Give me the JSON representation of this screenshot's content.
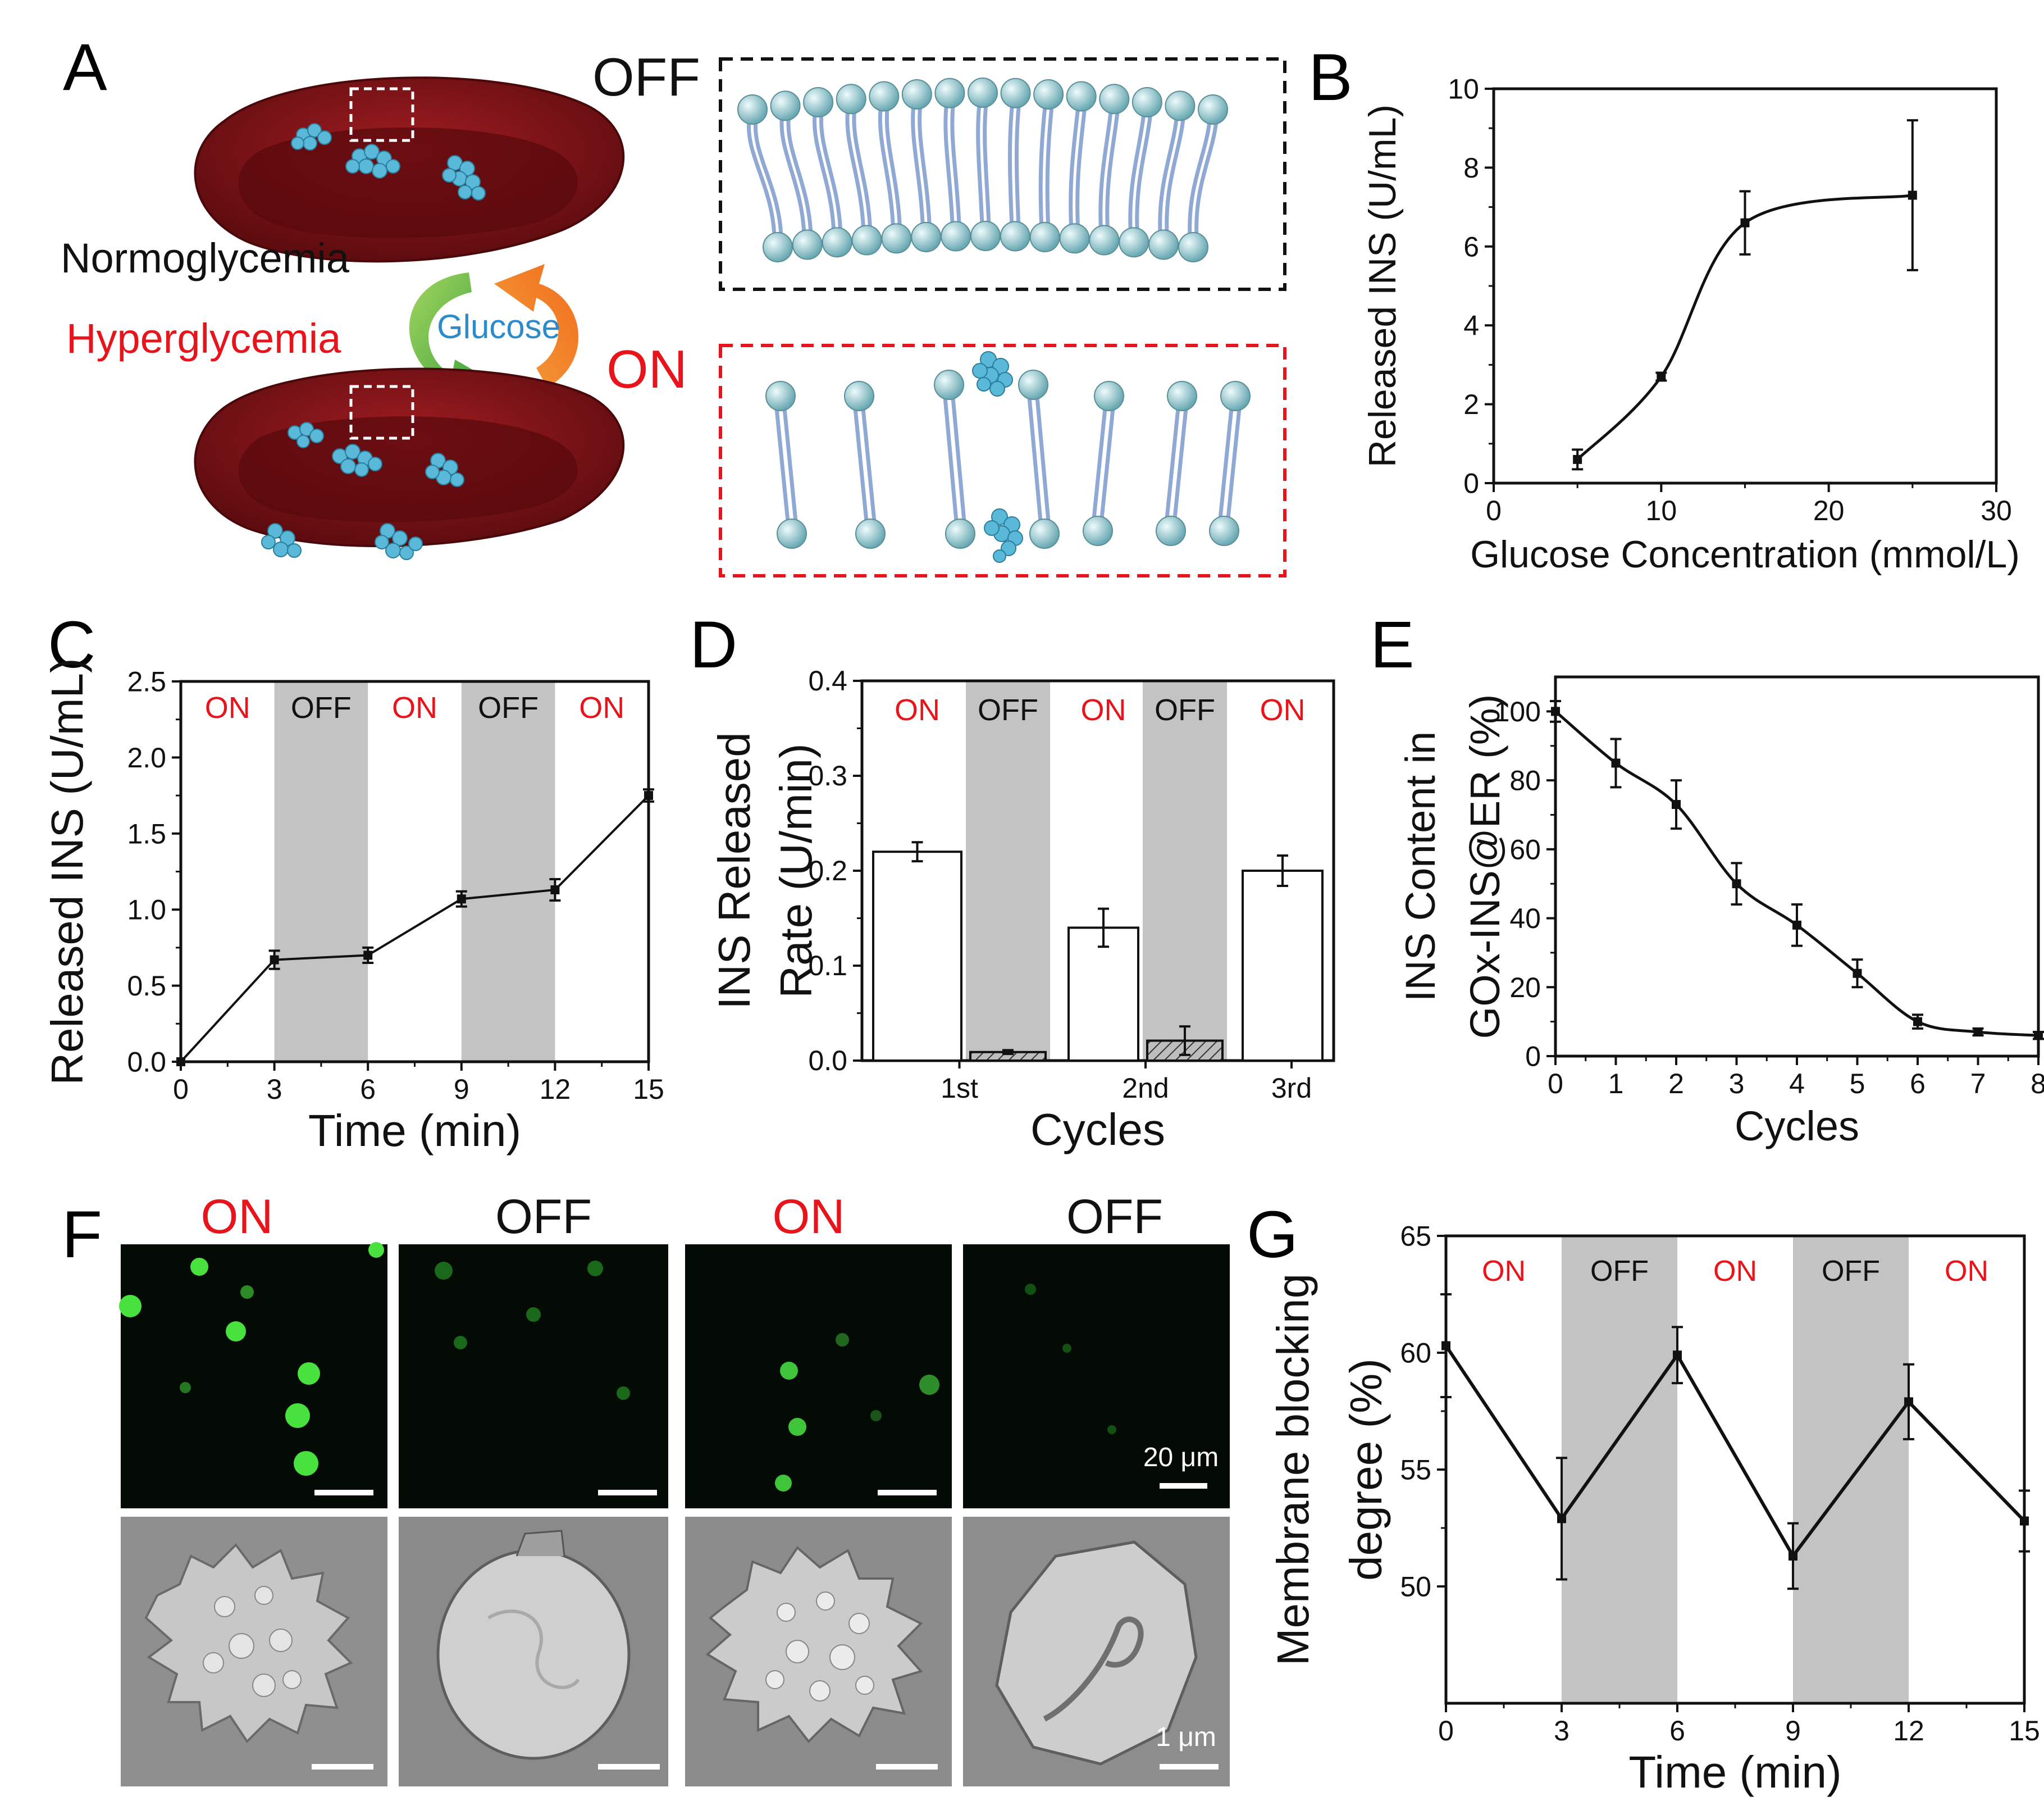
{
  "panel_labels": {
    "a": "A",
    "b": "B",
    "c": "C",
    "d": "D",
    "e": "E",
    "f": "F",
    "g": "G"
  },
  "schematic": {
    "normoglycemia": "Normoglycemia",
    "hyperglycemia": "Hyperglycemia",
    "glucose": "Glucose",
    "off": "OFF",
    "on": "ON"
  },
  "colors": {
    "on_label": "#e8141c",
    "shade": "#c3c3c3",
    "cell": "#8b1518",
    "insulin": "#5ab9d8",
    "lipid_head": "#b9e0e4",
    "lipid_tail": "#8fa9d4"
  },
  "micrographs": {
    "labels": [
      "ON",
      "OFF",
      "ON",
      "OFF"
    ],
    "scale_fluor": "20 μm",
    "scale_sem": "1 μm"
  },
  "chart_data": [
    {
      "panel": "B",
      "type": "line",
      "xlabel": "Glucose Concentration (mmol/L)",
      "ylabel": "Released INS (U/mL)",
      "xlim": [
        0,
        30
      ],
      "ylim": [
        0,
        10
      ],
      "xticks": [
        "0",
        "10",
        "20",
        "30"
      ],
      "yticks": [
        "0",
        "2",
        "4",
        "6",
        "8",
        "10"
      ],
      "x": [
        5,
        10,
        15,
        25
      ],
      "y": [
        0.6,
        2.7,
        6.6,
        7.3
      ],
      "err": [
        0.25,
        0.1,
        0.8,
        1.9
      ],
      "fit": "sigmoid"
    },
    {
      "panel": "C",
      "type": "line",
      "xlabel": "Time (min)",
      "ylabel": "Released INS (U/mL)",
      "xlim": [
        0,
        15
      ],
      "ylim": [
        0,
        2.5
      ],
      "xticks": [
        "0",
        "3",
        "6",
        "9",
        "12",
        "15"
      ],
      "yticks": [
        "0.0",
        "0.5",
        "1.0",
        "1.5",
        "2.0",
        "2.5"
      ],
      "x": [
        0,
        3,
        6,
        9,
        12,
        15
      ],
      "y": [
        0,
        0.67,
        0.7,
        1.07,
        1.13,
        1.75
      ],
      "err": [
        0,
        0.06,
        0.05,
        0.05,
        0.07,
        0.04
      ],
      "phases": [
        "ON",
        "OFF",
        "ON",
        "OFF",
        "ON"
      ]
    },
    {
      "panel": "D",
      "type": "bar",
      "xlabel": "Cycles",
      "ylabel": "INS Released Rate (U/min)",
      "ylim": [
        0,
        0.4
      ],
      "categories": [
        "1st",
        "2nd",
        "3rd"
      ],
      "yticks": [
        "0.0",
        "0.1",
        "0.2",
        "0.3",
        "0.4"
      ],
      "bars": [
        {
          "state": "ON",
          "value": 0.22,
          "err": 0.01
        },
        {
          "state": "OFF",
          "value": 0.009,
          "err": 0.002
        },
        {
          "state": "ON",
          "value": 0.14,
          "err": 0.02
        },
        {
          "state": "OFF",
          "value": 0.021,
          "err": 0.015
        },
        {
          "state": "ON",
          "value": 0.2,
          "err": 0.016
        }
      ],
      "phases": [
        "ON",
        "OFF",
        "ON",
        "OFF",
        "ON"
      ]
    },
    {
      "panel": "E",
      "type": "line",
      "xlabel": "Cycles",
      "ylabel": "INS Content in GOx-INS@ER (%)",
      "xlim": [
        0,
        8
      ],
      "ylim": [
        0,
        110
      ],
      "xticks": [
        "0",
        "1",
        "2",
        "3",
        "4",
        "5",
        "6",
        "7",
        "8"
      ],
      "yticks": [
        "0",
        "20",
        "40",
        "60",
        "80",
        "100"
      ],
      "x": [
        0,
        1,
        2,
        3,
        4,
        5,
        6,
        7,
        8
      ],
      "y": [
        100,
        85,
        73,
        50,
        38,
        24,
        10,
        7,
        6
      ],
      "err": [
        3,
        7,
        7,
        6,
        6,
        4,
        2,
        1,
        1
      ],
      "fit": "sigmoid"
    },
    {
      "panel": "G",
      "type": "line",
      "xlabel": "Time (min)",
      "ylabel": "Membrane blocking degree (%)",
      "xlim": [
        0,
        15
      ],
      "ylim": [
        45,
        65
      ],
      "xticks": [
        "0",
        "3",
        "6",
        "9",
        "12",
        "15"
      ],
      "yticks": [
        "50",
        "55",
        "60",
        "65"
      ],
      "x": [
        0,
        3,
        6,
        9,
        12,
        15
      ],
      "y": [
        60.3,
        52.9,
        59.9,
        51.3,
        57.9,
        52.8
      ],
      "err": [
        2.2,
        2.6,
        1.2,
        1.4,
        1.6,
        1.3
      ],
      "phases": [
        "ON",
        "OFF",
        "ON",
        "OFF",
        "ON"
      ]
    }
  ]
}
